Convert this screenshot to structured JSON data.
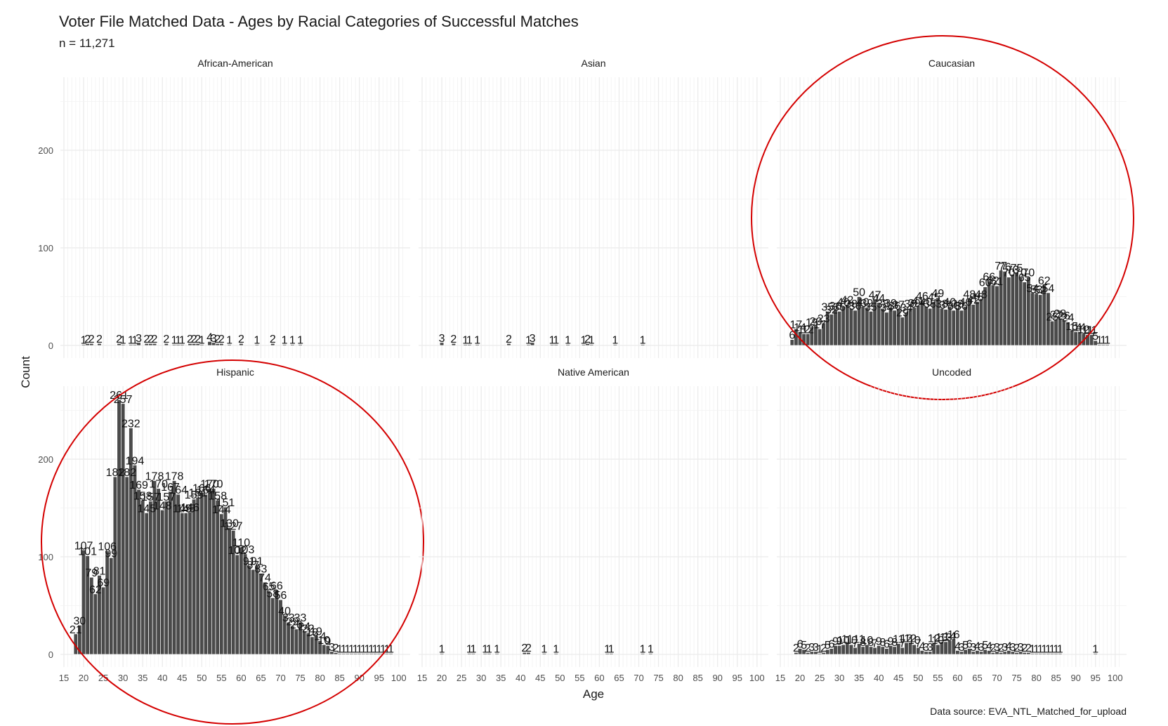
{
  "chart_data": {
    "type": "bar",
    "title": "Voter File Matched Data - Ages by Racial Categories of Successful Matches",
    "subtitle": "n = 11,271",
    "xlabel": "Age",
    "ylabel": "Count",
    "caption": "Data source: EVA_NTL_Matched_for_upload",
    "xlim": [
      15,
      102
    ],
    "ylim": [
      0,
      265
    ],
    "x_ticks": [
      15,
      20,
      25,
      30,
      35,
      40,
      45,
      50,
      55,
      60,
      65,
      70,
      75,
      80,
      85,
      90,
      95,
      100
    ],
    "y_ticks": [
      0,
      100,
      200
    ],
    "grid": true,
    "highlight_color": "#d40000",
    "bar_color": "#4a4a4a",
    "facets": [
      {
        "name": "African-American",
        "highlighted": false,
        "x": [
          20,
          21,
          22,
          24,
          29,
          30,
          32,
          33,
          34,
          36,
          37,
          38,
          41,
          43,
          44,
          45,
          47,
          48,
          49,
          50,
          52,
          53,
          54,
          55,
          57,
          60,
          64,
          68,
          71,
          73,
          75
        ],
        "values": [
          1,
          2,
          2,
          2,
          2,
          1,
          1,
          1,
          3,
          2,
          2,
          2,
          2,
          1,
          1,
          1,
          2,
          2,
          2,
          1,
          4,
          3,
          2,
          2,
          1,
          2,
          1,
          2,
          1,
          1,
          1
        ]
      },
      {
        "name": "Asian",
        "highlighted": false,
        "x": [
          20,
          23,
          26,
          27,
          29,
          37,
          42,
          43,
          48,
          49,
          52,
          56,
          57,
          58,
          64,
          71
        ],
        "values": [
          3,
          2,
          1,
          1,
          1,
          2,
          1,
          3,
          1,
          1,
          1,
          1,
          2,
          1,
          1,
          1
        ]
      },
      {
        "name": "Caucasian",
        "highlighted": true,
        "x": [
          18,
          19,
          20,
          21,
          22,
          23,
          24,
          25,
          26,
          27,
          28,
          29,
          30,
          31,
          32,
          33,
          34,
          35,
          36,
          37,
          38,
          39,
          40,
          41,
          42,
          43,
          44,
          45,
          46,
          47,
          48,
          49,
          50,
          51,
          52,
          53,
          54,
          55,
          56,
          57,
          58,
          59,
          60,
          61,
          62,
          63,
          64,
          65,
          66,
          67,
          68,
          69,
          70,
          71,
          72,
          73,
          74,
          75,
          76,
          77,
          78,
          79,
          80,
          81,
          82,
          83,
          84,
          85,
          86,
          87,
          88,
          89,
          90,
          91,
          92,
          93,
          94,
          95,
          96,
          97,
          98
        ],
        "values": [
          6,
          17,
          14,
          12,
          12,
          19,
          20,
          17,
          23,
          35,
          32,
          36,
          35,
          40,
          42,
          38,
          36,
          50,
          40,
          39,
          35,
          47,
          44,
          38,
          34,
          39,
          36,
          37,
          29,
          34,
          38,
          39,
          41,
          46,
          40,
          38,
          45,
          49,
          38,
          37,
          40,
          36,
          38,
          36,
          40,
          48,
          42,
          45,
          48,
          60,
          66,
          62,
          61,
          77,
          76,
          70,
          73,
          75,
          70,
          65,
          70,
          54,
          53,
          52,
          62,
          54,
          25,
          27,
          28,
          26,
          24,
          15,
          14,
          14,
          12,
          11,
          11,
          5,
          1,
          1,
          1
        ]
      },
      {
        "name": "Hispanic",
        "highlighted": true,
        "x": [
          18,
          19,
          20,
          21,
          22,
          23,
          24,
          25,
          26,
          27,
          28,
          29,
          30,
          31,
          32,
          33,
          34,
          35,
          36,
          37,
          38,
          39,
          40,
          41,
          42,
          43,
          44,
          45,
          46,
          47,
          48,
          49,
          50,
          51,
          52,
          53,
          54,
          55,
          56,
          57,
          58,
          59,
          60,
          61,
          62,
          63,
          64,
          65,
          66,
          67,
          68,
          69,
          70,
          71,
          72,
          73,
          74,
          75,
          76,
          77,
          78,
          79,
          80,
          81,
          82,
          83,
          84,
          85,
          86,
          87,
          88,
          89,
          90,
          91,
          92,
          93,
          94,
          95,
          96,
          97,
          98
        ],
        "values": [
          21,
          30,
          107,
          101,
          79,
          62,
          81,
          69,
          106,
          99,
          182,
          261,
          257,
          182,
          232,
          194,
          169,
          158,
          145,
          157,
          178,
          170,
          148,
          157,
          167,
          178,
          164,
          145,
          145,
          146,
          159,
          161,
          166,
          164,
          170,
          170,
          158,
          144,
          151,
          130,
          127,
          102,
          110,
          103,
          91,
          87,
          91,
          83,
          74,
          65,
          58,
          66,
          56,
          40,
          33,
          29,
          26,
          33,
          24,
          22,
          18,
          19,
          14,
          10,
          9,
          3,
          2,
          1,
          1,
          1,
          1,
          1,
          1,
          1,
          1,
          1,
          1,
          1,
          1,
          1,
          1
        ]
      },
      {
        "name": "Native American",
        "highlighted": false,
        "x": [
          20,
          27,
          28,
          31,
          32,
          34,
          41,
          42,
          46,
          49,
          62,
          63,
          71,
          73
        ],
        "values": [
          1,
          1,
          1,
          1,
          1,
          1,
          2,
          2,
          1,
          1,
          1,
          1,
          1,
          1
        ]
      },
      {
        "name": "Uncoded",
        "highlighted": false,
        "x": [
          19,
          20,
          21,
          22,
          23,
          24,
          25,
          26,
          27,
          28,
          29,
          30,
          31,
          32,
          33,
          34,
          35,
          36,
          37,
          38,
          39,
          40,
          41,
          42,
          43,
          44,
          45,
          46,
          47,
          48,
          49,
          50,
          51,
          52,
          53,
          54,
          55,
          56,
          57,
          58,
          59,
          60,
          61,
          62,
          63,
          64,
          65,
          66,
          67,
          68,
          69,
          70,
          71,
          72,
          73,
          74,
          75,
          76,
          77,
          78,
          79,
          80,
          81,
          82,
          83,
          84,
          85,
          86,
          95
        ],
        "values": [
          2,
          6,
          5,
          2,
          3,
          3,
          1,
          2,
          5,
          6,
          9,
          9,
          10,
          11,
          10,
          7,
          11,
          8,
          10,
          8,
          7,
          9,
          8,
          6,
          9,
          8,
          11,
          7,
          12,
          12,
          10,
          7,
          4,
          3,
          3,
          12,
          10,
          13,
          13,
          14,
          16,
          4,
          3,
          5,
          6,
          3,
          4,
          3,
          5,
          4,
          2,
          3,
          2,
          3,
          4,
          3,
          2,
          3,
          2,
          2,
          1,
          1,
          1,
          1,
          1,
          1,
          1,
          1,
          1
        ]
      }
    ]
  }
}
